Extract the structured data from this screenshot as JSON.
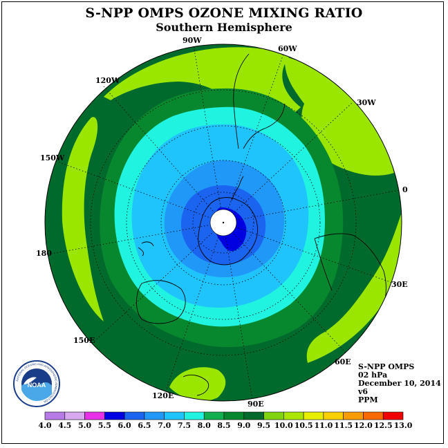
{
  "title": "S-NPP OMPS OZONE MIXING RATIO",
  "subtitle": "Southern Hemisphere",
  "logo_text": "NOAA",
  "logo_ring_text": "NATIONAL OCEANIC AND ATMOSPHERIC ADMINISTRATION",
  "info": {
    "instrument": "S-NPP OMPS",
    "level": "02 hPa",
    "date": "December 10, 2014",
    "version": "v6",
    "units": "PPM"
  },
  "longitude_labels": [
    "90W",
    "60W",
    "30W",
    "0",
    "30E",
    "60E",
    "90E",
    "120E",
    "150E",
    "180",
    "150W",
    "120W"
  ],
  "colorbar": {
    "ticks": [
      "4.0",
      "4.5",
      "5.0",
      "5.5",
      "6.0",
      "6.5",
      "7.0",
      "7.5",
      "8.0",
      "8.5",
      "9.0",
      "9.5",
      "10.0",
      "10.5",
      "11.0",
      "11.5",
      "12.0",
      "12.5",
      "13.0"
    ],
    "colors": [
      "#b77be8",
      "#d8a8f0",
      "#e830e8",
      "#0000e0",
      "#1a64f0",
      "#2098f8",
      "#20c4fc",
      "#20f4e0",
      "#10b050",
      "#08882e",
      "#006a2c",
      "#82d412",
      "#aae600",
      "#e6f000",
      "#f8d000",
      "#f89c00",
      "#f86a00",
      "#f00000",
      "#8c5030"
    ]
  },
  "map_data": {
    "projection": "south polar stereographic",
    "contour_bands_ppm": [
      "6.0-6.5",
      "6.5-7.0",
      "7.0-7.5",
      "7.5-8.0",
      "8.0-8.5",
      "8.5-9.0",
      "9.0-9.5"
    ],
    "minimum_region": "5.5-6.0 near pole",
    "maximum_band": "9.5-10.0 at mid-latitudes"
  },
  "colors": {
    "band_9_0": "#006a2c",
    "band_8_5": "#08882e",
    "band_9_5": "#9ae600",
    "band_8_0": "#20f4e0",
    "band_7_5": "#20c4fc",
    "band_7_0": "#2098f8",
    "band_6_5": "#1a64f0",
    "band_6_0": "#0000e0"
  }
}
